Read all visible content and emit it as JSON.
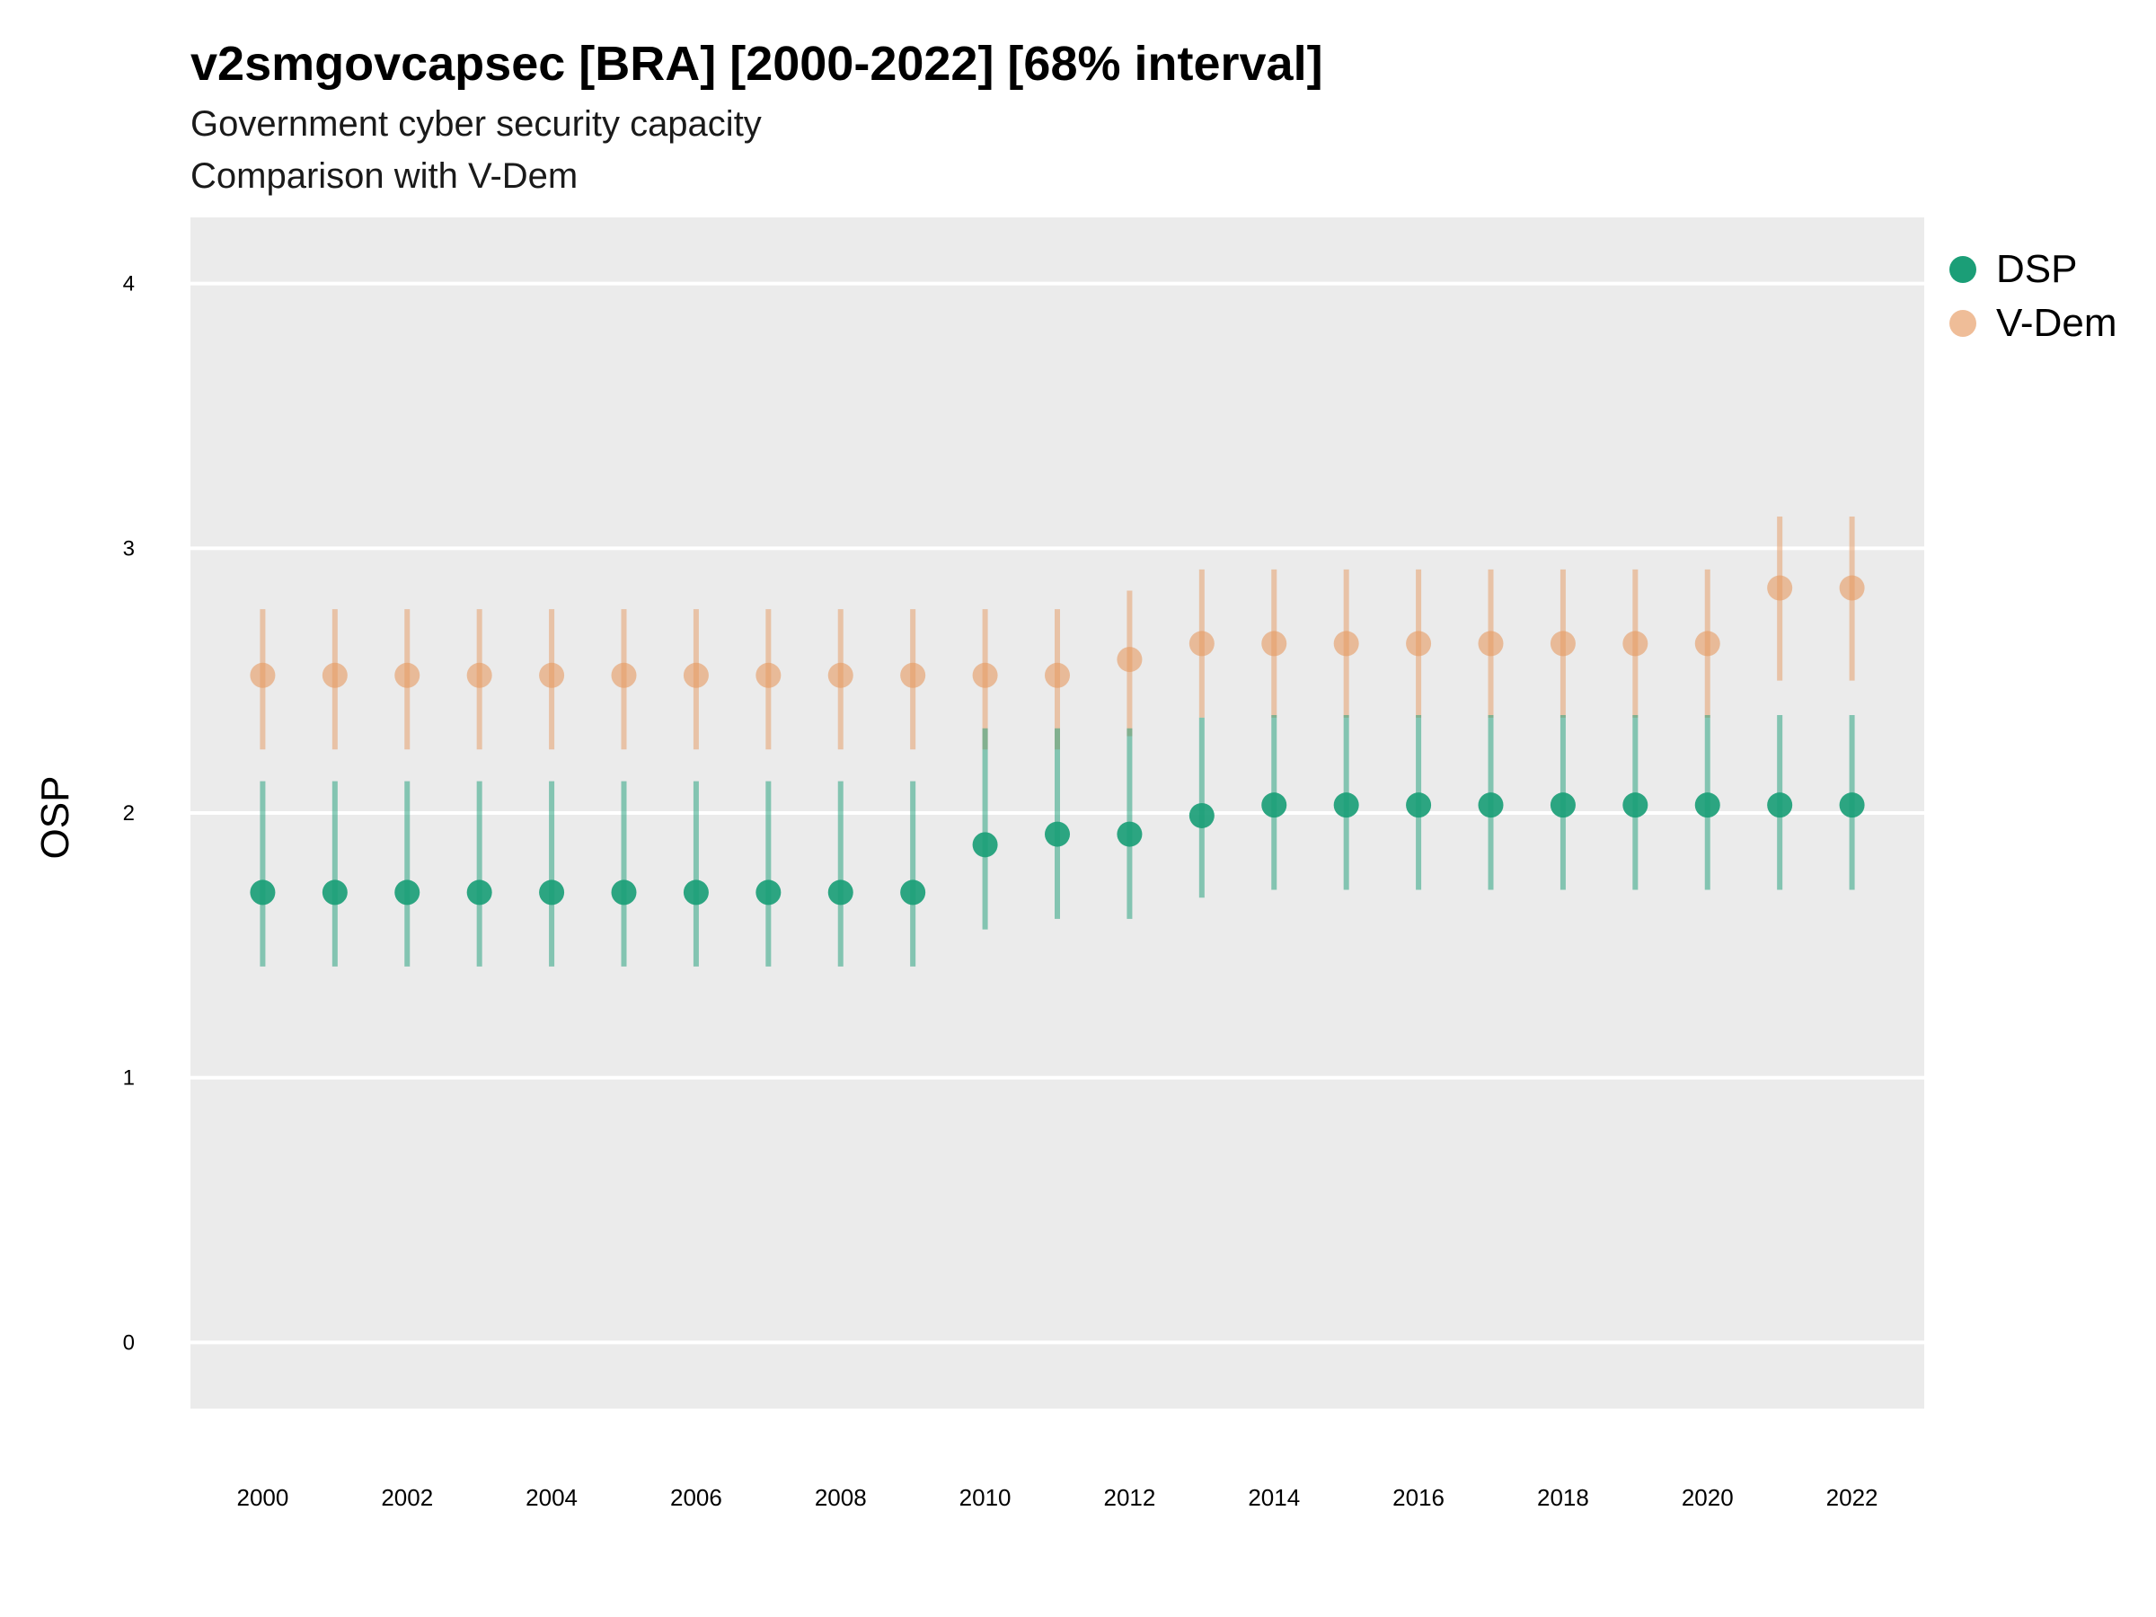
{
  "title": "v2smgovcapsec [BRA] [2000-2022] [68% interval]",
  "subtitle": "Government cyber security capacity",
  "subtitle2": "Comparison with V-Dem",
  "chart_data": {
    "type": "scatter",
    "xlabel": "",
    "ylabel": "OSP",
    "xlim": [
      1999.0,
      2023.0
    ],
    "ylim": [
      -0.25,
      4.25
    ],
    "yticks": [
      0,
      1,
      2,
      3,
      4
    ],
    "xticks": [
      2000,
      2002,
      2004,
      2006,
      2008,
      2010,
      2012,
      2014,
      2016,
      2018,
      2020,
      2022
    ],
    "grid": true,
    "legend_position": "right",
    "x": [
      2000,
      2001,
      2002,
      2003,
      2004,
      2005,
      2006,
      2007,
      2008,
      2009,
      2010,
      2011,
      2012,
      2013,
      2014,
      2015,
      2016,
      2017,
      2018,
      2019,
      2020,
      2021,
      2022
    ],
    "series": [
      {
        "name": "V-Dem",
        "color": "#E69A61",
        "values": [
          2.52,
          2.52,
          2.52,
          2.52,
          2.52,
          2.52,
          2.52,
          2.52,
          2.52,
          2.52,
          2.52,
          2.52,
          2.58,
          2.64,
          2.64,
          2.64,
          2.64,
          2.64,
          2.64,
          2.64,
          2.64,
          2.85,
          2.85
        ],
        "lower": [
          2.24,
          2.24,
          2.24,
          2.24,
          2.24,
          2.24,
          2.24,
          2.24,
          2.24,
          2.24,
          2.24,
          2.24,
          2.29,
          2.36,
          2.36,
          2.36,
          2.36,
          2.36,
          2.36,
          2.36,
          2.36,
          2.5,
          2.5
        ],
        "upper": [
          2.77,
          2.77,
          2.77,
          2.77,
          2.77,
          2.77,
          2.77,
          2.77,
          2.77,
          2.77,
          2.77,
          2.77,
          2.84,
          2.92,
          2.92,
          2.92,
          2.92,
          2.92,
          2.92,
          2.92,
          2.92,
          3.12,
          3.12
        ]
      },
      {
        "name": "DSP",
        "color": "#1B9E77",
        "values": [
          1.7,
          1.7,
          1.7,
          1.7,
          1.7,
          1.7,
          1.7,
          1.7,
          1.7,
          1.7,
          1.88,
          1.92,
          1.92,
          1.99,
          2.03,
          2.03,
          2.03,
          2.03,
          2.03,
          2.03,
          2.03,
          2.03,
          2.03
        ],
        "lower": [
          1.42,
          1.42,
          1.42,
          1.42,
          1.42,
          1.42,
          1.42,
          1.42,
          1.42,
          1.42,
          1.56,
          1.6,
          1.6,
          1.68,
          1.71,
          1.71,
          1.71,
          1.71,
          1.71,
          1.71,
          1.71,
          1.71,
          1.71
        ],
        "upper": [
          2.12,
          2.12,
          2.12,
          2.12,
          2.12,
          2.12,
          2.12,
          2.12,
          2.12,
          2.12,
          2.32,
          2.32,
          2.32,
          2.36,
          2.37,
          2.37,
          2.37,
          2.37,
          2.37,
          2.37,
          2.37,
          2.37,
          2.37
        ]
      }
    ]
  },
  "legend": [
    {
      "label": "DSP",
      "color": "#1B9E77"
    },
    {
      "label": "V-Dem",
      "color": "#E69A61"
    }
  ]
}
